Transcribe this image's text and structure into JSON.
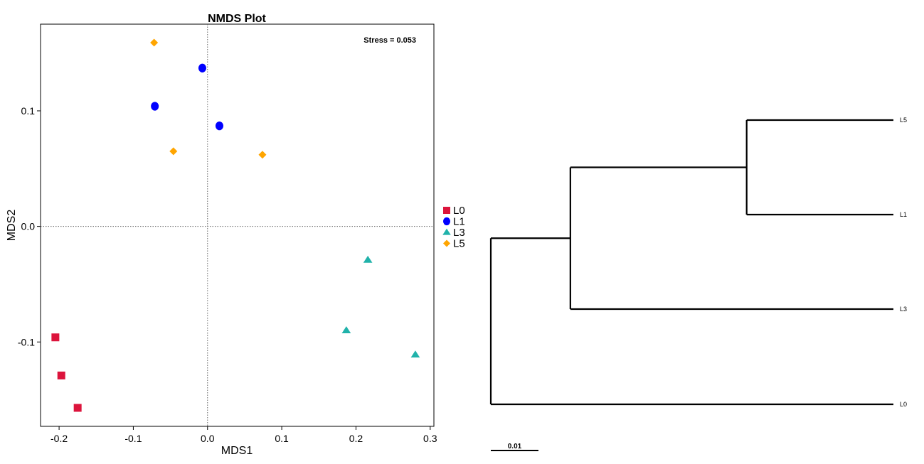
{
  "chart_data": [
    {
      "type": "scatter",
      "title": "NMDS Plot",
      "xlabel": "MDS1",
      "ylabel": "MDS2",
      "xlim": [
        -0.225,
        0.305
      ],
      "ylim": [
        -0.173,
        0.175
      ],
      "x_ticks": [
        -0.2,
        -0.1,
        0.0,
        0.1,
        0.2,
        0.3
      ],
      "x_tick_labels": [
        "-0.2",
        "-0.1",
        "0.0",
        "0.1",
        "0.2",
        "0.3"
      ],
      "y_ticks": [
        -0.1,
        0.0,
        0.1
      ],
      "y_tick_labels": [
        "-0.1",
        "0.0",
        "0.1"
      ],
      "reference_lines": {
        "x": 0.0,
        "y": 0.0,
        "style": "dotted"
      },
      "annotation": "Stress = 0.053",
      "grid": false,
      "legend": "right",
      "series": [
        {
          "name": "L0",
          "color": "#dc143c",
          "marker": "square",
          "points": [
            [
              -0.205,
              -0.096
            ],
            [
              -0.197,
              -0.129
            ],
            [
              -0.175,
              -0.157
            ]
          ]
        },
        {
          "name": "L1",
          "color": "#0000ff",
          "marker": "circle",
          "points": [
            [
              -0.071,
              0.104
            ],
            [
              -0.007,
              0.137
            ],
            [
              0.016,
              0.087
            ]
          ]
        },
        {
          "name": "L3",
          "color": "#20b2aa",
          "marker": "triangle",
          "points": [
            [
              0.216,
              -0.029
            ],
            [
              0.187,
              -0.09
            ],
            [
              0.28,
              -0.111
            ]
          ]
        },
        {
          "name": "L5",
          "color": "#ffa500",
          "marker": "diamond",
          "points": [
            [
              -0.072,
              0.159
            ],
            [
              -0.046,
              0.065
            ],
            [
              0.074,
              0.062
            ]
          ]
        }
      ]
    },
    {
      "type": "dendrogram",
      "leaves": [
        "L5",
        "L1",
        "L3",
        "L0"
      ],
      "scale_bar": {
        "label": "0.01",
        "value": 0.01
      },
      "tree": {
        "name": "root",
        "height": 0.0,
        "children": [
          {
            "name": "n1",
            "height": 0.0167,
            "children": [
              {
                "name": "n2",
                "height": 0.0537,
                "children": [
                  {
                    "name": "L5",
                    "height": 0.0845
                  },
                  {
                    "name": "L1",
                    "height": 0.0845
                  }
                ]
              },
              {
                "name": "L3",
                "height": 0.0845
              }
            ]
          },
          {
            "name": "L0",
            "height": 0.0845
          }
        ]
      }
    }
  ]
}
